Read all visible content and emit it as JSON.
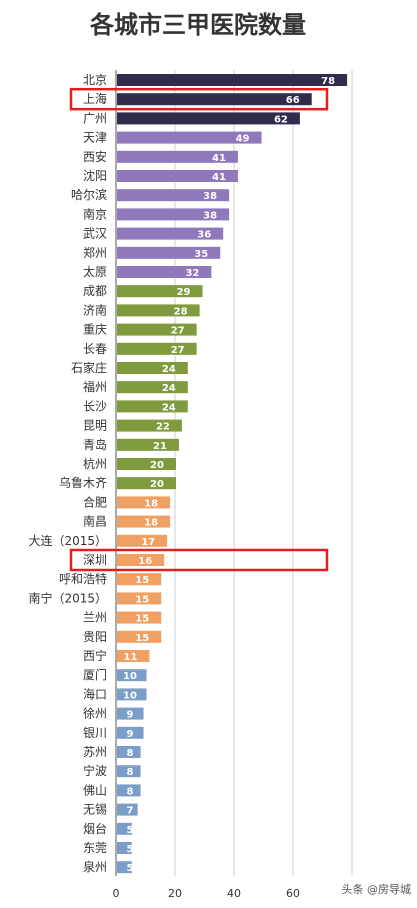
{
  "chart_data": {
    "type": "bar",
    "orientation": "horizontal",
    "title": "各城市三甲医院数量",
    "categories": [
      "北京",
      "上海",
      "广州",
      "天津",
      "西安",
      "沈阳",
      "哈尔滨",
      "南京",
      "武汉",
      "郑州",
      "太原",
      "成都",
      "济南",
      "重庆",
      "长春",
      "石家庄",
      "福州",
      "长沙",
      "昆明",
      "青岛",
      "杭州",
      "乌鲁木齐",
      "合肥",
      "南昌",
      "大连（2015）",
      "深圳",
      "呼和浩特",
      "南宁（2015）",
      "兰州",
      "贵阳",
      "西宁",
      "厦门",
      "海口",
      "徐州",
      "银川",
      "苏州",
      "宁波",
      "佛山",
      "无锡",
      "烟台",
      "东莞",
      "泉州"
    ],
    "values": [
      78,
      66,
      62,
      49,
      41,
      41,
      38,
      38,
      36,
      35,
      32,
      29,
      28,
      27,
      27,
      24,
      24,
      24,
      22,
      21,
      20,
      20,
      18,
      18,
      17,
      16,
      15,
      15,
      15,
      15,
      11,
      10,
      10,
      9,
      9,
      8,
      8,
      8,
      7,
      5,
      5,
      5
    ],
    "xlim": [
      0,
      80
    ],
    "xticks": [
      0,
      20,
      40,
      60
    ],
    "grid": true,
    "highlighted": [
      "上海",
      "深圳"
    ],
    "highlight_color": "#e02020",
    "group_colors": [
      {
        "from": "北京",
        "to": "广州",
        "color": "#2f2c4c"
      },
      {
        "from": "天津",
        "to": "太原",
        "color": "#8f79bb"
      },
      {
        "from": "成都",
        "to": "乌鲁木齐",
        "color": "#7f9b3e"
      },
      {
        "from": "合肥",
        "to": "西宁",
        "color": "#f0a062"
      },
      {
        "from": "厦门",
        "to": "泉州",
        "color": "#7b9ec8"
      }
    ]
  },
  "watermark": "头条 @房导城"
}
